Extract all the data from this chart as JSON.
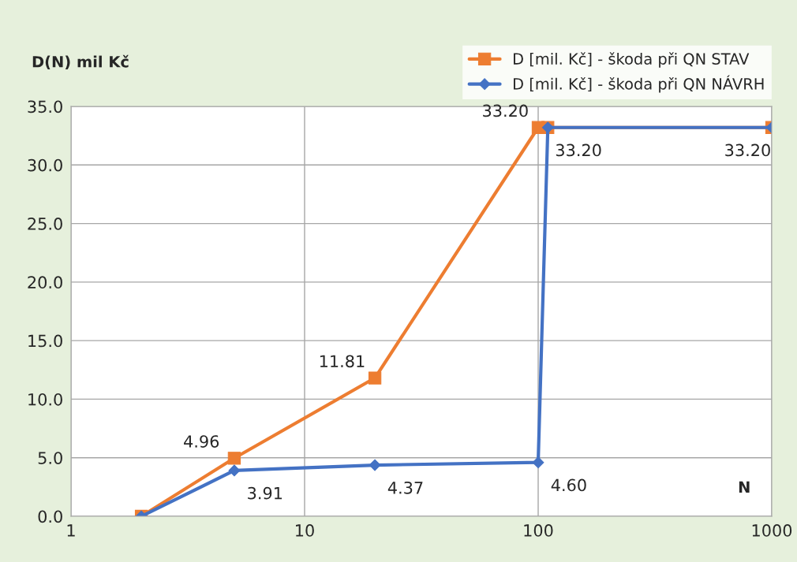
{
  "chart_data": {
    "type": "line",
    "ylabel": "D(N) mil Kč",
    "xlabel": "N",
    "log": "x",
    "xlim": [
      1,
      1000
    ],
    "xticks": [
      1,
      10,
      100,
      1000
    ],
    "ylim": [
      0,
      35
    ],
    "yticks": [
      {
        "value": 0,
        "label": "0.0"
      },
      {
        "value": 5,
        "label": "5.0"
      },
      {
        "value": 10,
        "label": "10.0"
      },
      {
        "value": 15,
        "label": "15.0"
      },
      {
        "value": 20,
        "label": "20.0"
      },
      {
        "value": 25,
        "label": "25.0"
      },
      {
        "value": 30,
        "label": "30.0"
      },
      {
        "value": 35,
        "label": "35.0"
      }
    ],
    "grid": true,
    "legend": "top right",
    "series": [
      {
        "name": "D [mil. Kč] - škoda při QN STAV",
        "color": "#ed7d31",
        "marker": "square",
        "x": [
          2,
          5,
          20,
          100,
          110,
          1000
        ],
        "values": [
          0,
          4.96,
          11.81,
          33.2,
          33.2,
          33.2
        ],
        "value_labels": [
          null,
          "4.96",
          "11.81",
          "33.20",
          null,
          null
        ]
      },
      {
        "name": "D [mil. Kč] - škoda při QN NÁVRH",
        "color": "#4472c4",
        "marker": "diamond",
        "x": [
          2,
          5,
          20,
          100,
          110,
          1000
        ],
        "values": [
          0,
          3.91,
          4.37,
          4.6,
          33.2,
          33.2
        ],
        "value_labels": [
          null,
          "3.91",
          "4.37",
          "4.60",
          "33.20",
          "33.20"
        ]
      }
    ]
  }
}
